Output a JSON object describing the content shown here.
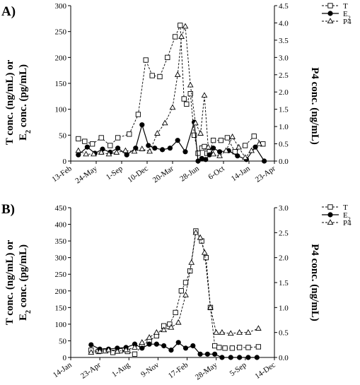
{
  "chart_data": [
    {
      "panel_label": "A)",
      "type": "line",
      "y_left_label_line1": "T conc. (ng/mL) or",
      "y_left_label_line2_prefix": "E",
      "y_left_label_line2_sub": "2",
      "y_left_label_line2_suffix": " conc. (pg/mL)",
      "y_right_label": "P4 conc. (ng/mL)",
      "ylim_left": [
        0,
        300
      ],
      "ylim_right": [
        0,
        4.5
      ],
      "y_left_ticks": [
        "0",
        "50",
        "100",
        "150",
        "200",
        "250",
        "300"
      ],
      "y_right_ticks": [
        "0.0",
        "0.5",
        "1.0",
        "1.5",
        "2.0",
        "2.5",
        "3.0",
        "3.5",
        "4.0",
        "4.5"
      ],
      "x_tick_labels": [
        "13-Feb",
        "24-May",
        "1-Sep",
        "10-Dec",
        "20-Mar",
        "28-Jun",
        "6-Oct",
        "14-Jan",
        "23-Apr"
      ],
      "legend": [
        {
          "key": "T",
          "name_prefix": "T",
          "name_sub": ""
        },
        {
          "key": "E2",
          "name_prefix": "E",
          "name_sub": "2"
        },
        {
          "key": "P4",
          "name_prefix": "P4",
          "name_sub": ""
        }
      ],
      "series": [
        {
          "key": "T",
          "axis": "left",
          "marker": "square",
          "x": [
            0.3,
            0.55,
            0.85,
            1.2,
            1.55,
            1.85,
            2.3,
            2.65,
            2.95,
            3.2,
            3.5,
            3.8,
            4.1,
            4.3,
            4.45,
            4.55,
            4.7,
            4.85,
            5.0,
            5.15,
            5.25,
            5.35,
            5.45,
            5.6,
            5.9,
            6.15,
            6.45,
            6.85,
            7.2,
            7.55
          ],
          "y": [
            43,
            38,
            33,
            45,
            30,
            45,
            52,
            90,
            195,
            165,
            163,
            200,
            240,
            262,
            120,
            110,
            130,
            50,
            15,
            25,
            28,
            15,
            18,
            40,
            40,
            45,
            18,
            30,
            48,
            33
          ]
        },
        {
          "key": "E2",
          "axis": "left",
          "marker": "circle",
          "x": [
            0.3,
            0.65,
            0.95,
            1.25,
            1.55,
            1.85,
            2.2,
            2.55,
            2.8,
            3.05,
            3.3,
            3.6,
            3.9,
            4.2,
            4.5,
            4.85,
            5.0,
            5.15,
            5.3,
            5.45,
            5.6,
            5.85,
            6.2,
            6.55,
            6.9,
            7.25,
            7.6
          ],
          "y": [
            12,
            27,
            15,
            23,
            17,
            25,
            12,
            25,
            70,
            30,
            25,
            22,
            25,
            40,
            18,
            75,
            0,
            5,
            3,
            12,
            25,
            18,
            20,
            10,
            3,
            27,
            0
          ]
        },
        {
          "key": "P4",
          "axis": "right",
          "marker": "triangle",
          "x": [
            0.3,
            0.6,
            0.9,
            1.2,
            1.5,
            1.8,
            2.15,
            2.5,
            2.8,
            3.1,
            3.4,
            3.7,
            4.0,
            4.2,
            4.35,
            4.5,
            4.7,
            4.9,
            5.1,
            5.25,
            5.4,
            5.6,
            5.85,
            6.1,
            6.35,
            6.6,
            6.85,
            7.1,
            7.4
          ],
          "y": [
            0.3,
            0.2,
            0.2,
            0.25,
            0.2,
            0.25,
            0.3,
            0.28,
            0.35,
            0.28,
            0.8,
            1.1,
            1.55,
            2.5,
            3.6,
            3.9,
            2.2,
            1.1,
            0.8,
            1.9,
            0.4,
            0.2,
            0.15,
            0.3,
            0.7,
            0.4,
            0.1,
            0.3,
            0.5
          ]
        }
      ]
    },
    {
      "panel_label": "B)",
      "type": "line",
      "y_left_label_line1": "T conc. (ng/mL) or",
      "y_left_label_line2_prefix": "E",
      "y_left_label_line2_sub": "2",
      "y_left_label_line2_suffix": " conc. (pg/mL)",
      "y_right_label": "P4 conc. (ng/mL)",
      "ylim_left": [
        0,
        450
      ],
      "ylim_right": [
        0,
        3.0
      ],
      "y_left_ticks": [
        "0",
        "50",
        "100",
        "150",
        "200",
        "250",
        "300",
        "350",
        "400",
        "450"
      ],
      "y_right_ticks": [
        "0.0",
        "0.5",
        "1.0",
        "1.5",
        "2.0",
        "2.5",
        "3.0"
      ],
      "x_tick_labels": [
        "14-Jan",
        "23-Apr",
        "1-Aug",
        "9-Nov",
        "17-Feb",
        "28-May",
        "5-Sep",
        "14-Dec"
      ],
      "legend": [
        {
          "key": "T",
          "name_prefix": "T",
          "name_sub": ""
        },
        {
          "key": "E2",
          "name_prefix": "E",
          "name_sub": "2"
        },
        {
          "key": "P4",
          "name_prefix": "P4",
          "name_sub": ""
        }
      ],
      "series": [
        {
          "key": "T",
          "axis": "left",
          "marker": "square",
          "x": [
            0.7,
            0.95,
            1.2,
            1.45,
            1.7,
            1.95,
            2.2,
            2.45,
            2.7,
            2.95,
            3.2,
            3.4,
            3.6,
            3.8,
            3.95,
            4.1,
            4.3,
            4.5,
            4.65,
            4.8,
            4.95,
            5.1,
            5.3,
            5.55,
            5.8,
            6.1,
            6.45
          ],
          "y": [
            22,
            18,
            20,
            15,
            20,
            18,
            10,
            35,
            50,
            65,
            95,
            100,
            135,
            200,
            225,
            260,
            380,
            350,
            300,
            150,
            35,
            30,
            28,
            28,
            30,
            30,
            32
          ]
        },
        {
          "key": "E2",
          "axis": "left",
          "marker": "circle",
          "x": [
            0.7,
            1.0,
            1.3,
            1.6,
            1.9,
            2.2,
            2.45,
            2.7,
            2.95,
            3.2,
            3.45,
            3.7,
            3.95,
            4.2,
            4.45,
            4.7,
            4.95,
            5.2,
            5.5,
            5.8,
            6.1,
            6.4
          ],
          "y": [
            38,
            25,
            25,
            28,
            30,
            40,
            28,
            40,
            40,
            35,
            22,
            45,
            28,
            35,
            10,
            10,
            10,
            0,
            0,
            0,
            0,
            0
          ]
        },
        {
          "key": "P4",
          "axis": "right",
          "marker": "triangle",
          "x": [
            0.7,
            1.0,
            1.3,
            1.6,
            1.9,
            2.2,
            2.45,
            2.7,
            2.95,
            3.2,
            3.45,
            3.7,
            3.95,
            4.15,
            4.3,
            4.45,
            4.6,
            4.8,
            5.0,
            5.2,
            5.5,
            5.8,
            6.1,
            6.45
          ],
          "y": [
            0.1,
            0.12,
            0.15,
            0.12,
            0.15,
            0.2,
            0.3,
            0.4,
            0.5,
            0.55,
            0.6,
            0.7,
            1.25,
            1.9,
            2.5,
            2.4,
            2.1,
            1.0,
            0.5,
            0.5,
            0.48,
            0.5,
            0.5,
            0.58
          ]
        }
      ]
    }
  ]
}
